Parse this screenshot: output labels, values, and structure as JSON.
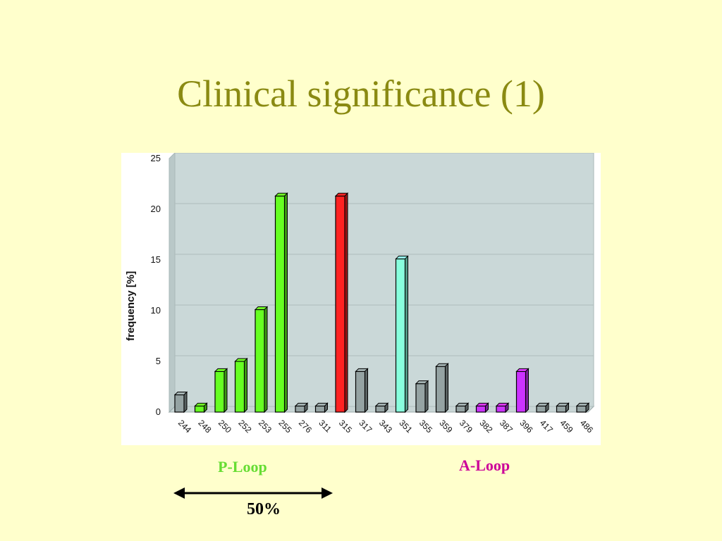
{
  "slide": {
    "title": "Clinical significance (1)",
    "p_loop_label": "P-Loop",
    "a_loop_label": "A-Loop",
    "span_label": "50%"
  },
  "colors": {
    "background": "#FFFFCC",
    "title": "#8A8A12",
    "p_loop_text": "#66DD33",
    "a_loop_text": "#CC0099",
    "plot_area": "#CAD8D8",
    "gray_bar": "#95A3A3",
    "green_bar": "#66FF22",
    "red_bar": "#FF2222",
    "aqua_bar": "#88FFDD",
    "purple_bar": "#CC33FF"
  },
  "chart_data": {
    "type": "bar",
    "title": "",
    "xlabel": "",
    "ylabel": "frequency [%]",
    "ylim": [
      0,
      25
    ],
    "yticks": [
      0,
      5,
      10,
      15,
      20,
      25
    ],
    "grid": true,
    "legend": "none",
    "categories": [
      "244",
      "248",
      "250",
      "252",
      "253",
      "255",
      "276",
      "311",
      "315",
      "317",
      "343",
      "351",
      "355",
      "359",
      "379",
      "382",
      "387",
      "396",
      "417",
      "459",
      "486"
    ],
    "values": [
      1.7,
      0.6,
      4,
      5,
      10.1,
      21.3,
      0.6,
      0.6,
      21.3,
      4,
      0.6,
      15.1,
      2.8,
      4.5,
      0.6,
      0.6,
      0.6,
      4,
      0.6,
      0.6,
      0.6
    ],
    "bar_colors": [
      "gray",
      "green",
      "green",
      "green",
      "green",
      "green",
      "gray",
      "gray",
      "red",
      "gray",
      "gray",
      "aqua",
      "gray",
      "gray",
      "gray",
      "purple",
      "purple",
      "purple",
      "gray",
      "gray",
      "gray"
    ]
  }
}
